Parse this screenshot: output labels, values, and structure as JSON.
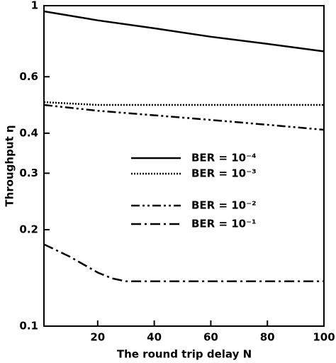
{
  "chart_data": {
    "type": "line",
    "xlabel": "The round trip delay N",
    "ylabel": "Throughput η",
    "xlim": [
      1,
      100
    ],
    "xticks": [
      20,
      40,
      60,
      80,
      100
    ],
    "ylim": [
      0.1,
      1
    ],
    "yticks": [
      0.1,
      0.2,
      0.3,
      0.4,
      0.6,
      1
    ],
    "log_y": true,
    "series": [
      {
        "name": "BER = 10⁻⁴",
        "color": "#000000",
        "dash": "solid",
        "x": [
          1,
          20,
          40,
          60,
          80,
          100
        ],
        "values": [
          0.96,
          0.9,
          0.85,
          0.8,
          0.76,
          0.72
        ]
      },
      {
        "name": "BER = 10⁻³",
        "color": "#000000",
        "dash": "dotted",
        "x": [
          1,
          20,
          40,
          60,
          80,
          100
        ],
        "values": [
          0.5,
          0.49,
          0.49,
          0.49,
          0.49,
          0.49
        ]
      },
      {
        "name": "BER = 10⁻²",
        "color": "#000000",
        "dash": "dashdotdot",
        "x": [
          1,
          20,
          40,
          60,
          80,
          100
        ],
        "values": [
          0.49,
          0.47,
          0.455,
          0.44,
          0.425,
          0.41
        ]
      },
      {
        "name": "BER = 10⁻¹",
        "color": "#000000",
        "dash": "dashdot",
        "x": [
          1,
          10,
          20,
          25,
          30,
          40,
          60,
          80,
          100
        ],
        "values": [
          0.18,
          0.165,
          0.147,
          0.141,
          0.138,
          0.138,
          0.138,
          0.138,
          0.138
        ]
      }
    ]
  }
}
